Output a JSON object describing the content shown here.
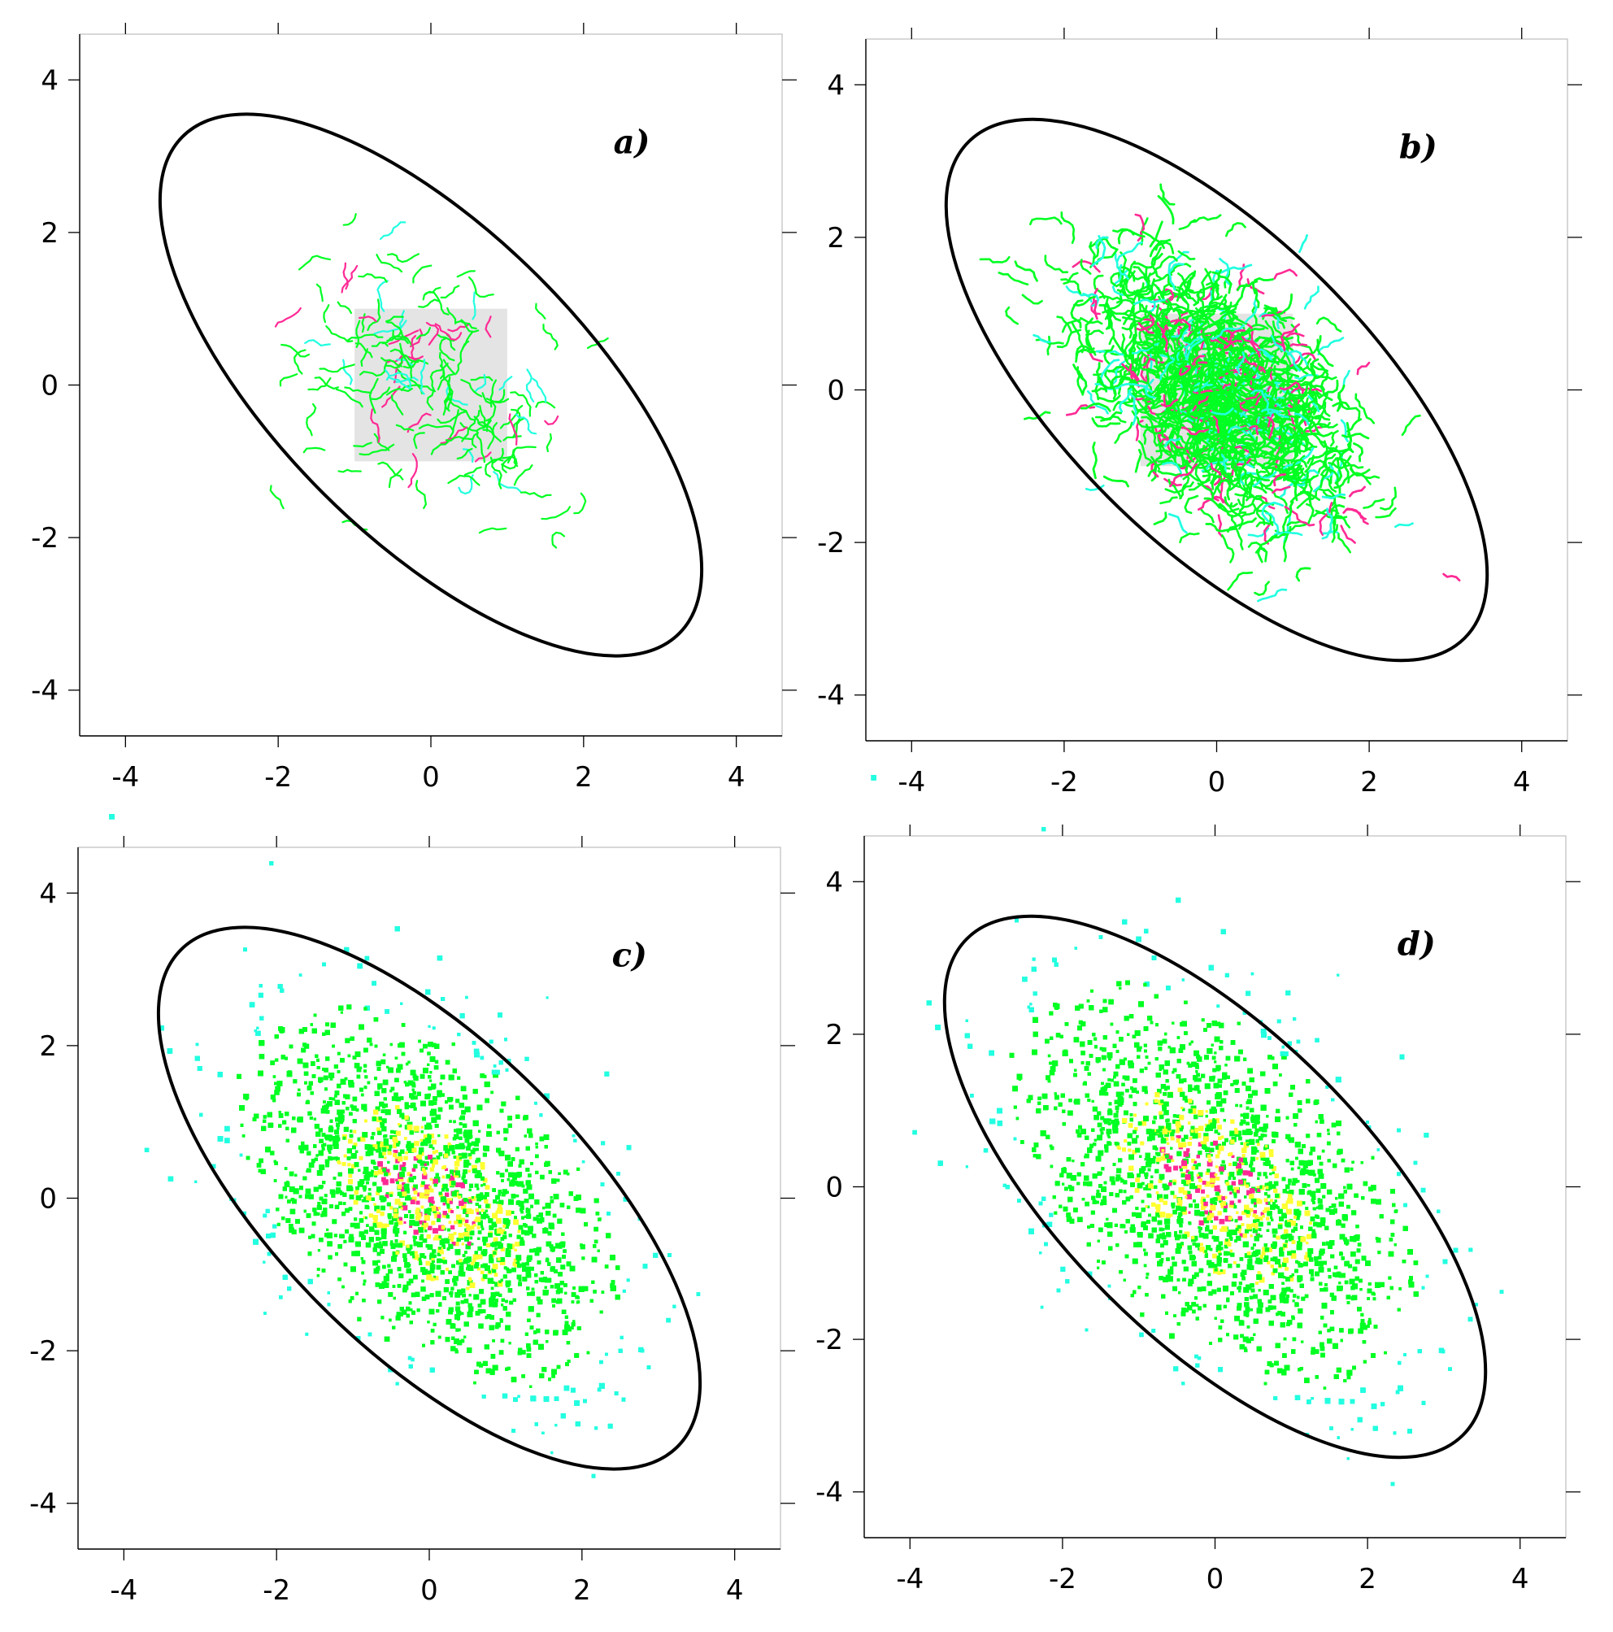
{
  "colors": {
    "frame": "#000000",
    "ellipse": "#000000",
    "seed_region": "#e4e4e4",
    "series": [
      "#00ff22",
      "#22ffe0",
      "#ffff30",
      "#ff2a95"
    ]
  },
  "chart_data": [
    {
      "type": "scatter",
      "panel_label": "a)",
      "xlim": [
        -4.6,
        4.6
      ],
      "ylim": [
        -4.6,
        4.6
      ],
      "xticks": [
        -4,
        -2,
        0,
        2,
        4
      ],
      "yticks": [
        -4,
        -2,
        0,
        2,
        4
      ],
      "xtick_labels": [
        "-4",
        "-2",
        "0",
        "2",
        "4"
      ],
      "ytick_labels": [
        "-4",
        "-2",
        "0",
        "2",
        "4"
      ],
      "boundary_ellipse": {
        "center": [
          0,
          0
        ],
        "semi_major": 4.6,
        "semi_minor": 2.0,
        "angle_deg": -45
      },
      "seed_region": {
        "x": [
          -1,
          1
        ],
        "y": [
          -1,
          1
        ]
      },
      "cloud": {
        "center": [
          0,
          0
        ],
        "spread_major": 0.95,
        "spread_minor": 0.6,
        "density": "sparse",
        "count": 170,
        "style": "segments"
      },
      "grid": false
    },
    {
      "type": "scatter",
      "panel_label": "b)",
      "xlim": [
        -4.6,
        4.6
      ],
      "ylim": [
        -4.6,
        4.6
      ],
      "xticks": [
        -4,
        -2,
        0,
        2,
        4
      ],
      "yticks": [
        -4,
        -2,
        0,
        2,
        4
      ],
      "xtick_labels": [
        "-4",
        "-2",
        "0",
        "2",
        "4"
      ],
      "ytick_labels": [
        "-4",
        "-2",
        "0",
        "2",
        "4"
      ],
      "boundary_ellipse": {
        "center": [
          0,
          0
        ],
        "semi_major": 4.6,
        "semi_minor": 2.0,
        "angle_deg": -45
      },
      "seed_region": {
        "x": [
          -1,
          1
        ],
        "y": [
          -1,
          1
        ]
      },
      "cloud": {
        "center": [
          0,
          0
        ],
        "spread_major": 1.05,
        "spread_minor": 0.6,
        "density": "medium",
        "count": 1500,
        "style": "segments"
      },
      "grid": false
    },
    {
      "type": "scatter",
      "panel_label": "c)",
      "xlim": [
        -4.6,
        4.6
      ],
      "ylim": [
        -4.6,
        4.6
      ],
      "xticks": [
        -4,
        -2,
        0,
        2,
        4
      ],
      "yticks": [
        -4,
        -2,
        0,
        2,
        4
      ],
      "xtick_labels": [
        "-4",
        "-2",
        "0",
        "2",
        "4"
      ],
      "ytick_labels": [
        "-4",
        "-2",
        "0",
        "2",
        "4"
      ],
      "boundary_ellipse": {
        "center": [
          0,
          0
        ],
        "semi_major": 4.6,
        "semi_minor": 2.0,
        "angle_deg": -45
      },
      "cloud": {
        "center": [
          0,
          0
        ],
        "spread_major": 1.35,
        "spread_minor": 0.78,
        "density": "dense",
        "count": 7000,
        "style": "points"
      },
      "grid": false
    },
    {
      "type": "scatter",
      "panel_label": "d)",
      "xlim": [
        -4.6,
        4.6
      ],
      "ylim": [
        -4.6,
        4.6
      ],
      "xticks": [
        -4,
        -2,
        0,
        2,
        4
      ],
      "yticks": [
        -4,
        -2,
        0,
        2,
        4
      ],
      "xtick_labels": [
        "-4",
        "-2",
        "0",
        "2",
        "4"
      ],
      "ytick_labels": [
        "-4",
        "-2",
        "0",
        "2",
        "4"
      ],
      "boundary_ellipse": {
        "center": [
          0,
          0
        ],
        "semi_major": 4.6,
        "semi_minor": 2.0,
        "angle_deg": -45
      },
      "cloud": {
        "center": [
          0,
          0
        ],
        "spread_major": 1.45,
        "spread_minor": 0.82,
        "density": "very dense",
        "count": 8000,
        "style": "points"
      },
      "grid": false
    }
  ]
}
